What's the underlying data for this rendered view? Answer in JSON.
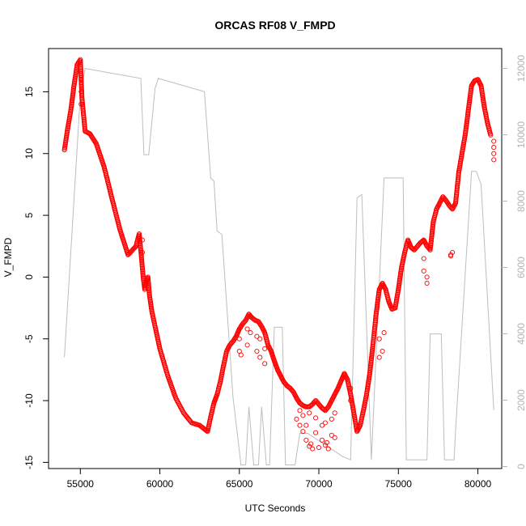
{
  "chart_data": {
    "type": "scatter",
    "title": "ORCAS RF08 V_FMPD",
    "xlabel": "UTC Seconds",
    "ylabel": "V_FMPD",
    "xlim": [
      53000,
      81500
    ],
    "ylim": [
      -15.5,
      18.5
    ],
    "y2lim": [
      -60,
      12600
    ],
    "xticks": [
      55000,
      60000,
      65000,
      70000,
      75000,
      80000
    ],
    "yticks": [
      -15,
      -10,
      -5,
      0,
      5,
      10,
      15
    ],
    "y2ticks": [
      0,
      2000,
      4000,
      6000,
      8000,
      10000,
      12000
    ],
    "series": [
      {
        "kind": "points",
        "color": "#ff0000",
        "x": [
          54000,
          54200,
          54400,
          54600,
          54800,
          55000,
          55100,
          55300,
          55600,
          56000,
          56500,
          57000,
          57500,
          58000,
          58500,
          58700,
          58850,
          58950,
          59050,
          59150,
          59250,
          59350,
          59500,
          59700,
          60000,
          60500,
          61000,
          61500,
          62000,
          62500,
          62800,
          63000,
          63200,
          63400,
          63600,
          63800,
          64000,
          64200,
          64400,
          64600,
          64800,
          65000,
          65200,
          65400,
          65600,
          65800,
          66000,
          66200,
          66400,
          66600,
          66800,
          67000,
          67200,
          67400,
          67600,
          67800,
          68000,
          68200,
          68400,
          68600,
          68800,
          69000,
          69200,
          69400,
          69600,
          69800,
          70000,
          70200,
          70400,
          70600,
          70800,
          71000,
          71200,
          71400,
          71600,
          71800,
          72000,
          72200,
          72400,
          72600,
          72800,
          73000,
          73200,
          73400,
          73600,
          73800,
          74000,
          74200,
          74400,
          74600,
          74800,
          75000,
          75200,
          75400,
          75600,
          75800,
          76000,
          76200,
          76400,
          76600,
          76800,
          77000,
          77200,
          77400,
          77600,
          77800,
          78000,
          78200,
          78400,
          78600,
          78800,
          79000,
          79200,
          79400,
          79600,
          79800,
          80000,
          80200,
          80400,
          80600,
          80800
        ],
        "y": [
          10.3,
          12.0,
          13.5,
          15.5,
          17.2,
          17.6,
          14.5,
          11.8,
          11.6,
          10.8,
          8.9,
          6.3,
          3.8,
          1.8,
          2.5,
          3.5,
          1.5,
          0.0,
          -1.0,
          -0.3,
          0.0,
          -1.5,
          -2.8,
          -4.0,
          -5.8,
          -8.0,
          -9.8,
          -11.0,
          -11.8,
          -12.0,
          -12.3,
          -12.5,
          -11.3,
          -10.2,
          -9.5,
          -8.5,
          -7.2,
          -6.0,
          -5.5,
          -5.2,
          -4.8,
          -4.2,
          -3.8,
          -3.5,
          -3.0,
          -3.3,
          -3.5,
          -3.6,
          -4.0,
          -4.5,
          -5.5,
          -6.0,
          -6.8,
          -7.5,
          -8.0,
          -8.5,
          -8.8,
          -9.0,
          -9.3,
          -9.8,
          -10.2,
          -10.4,
          -10.5,
          -10.5,
          -10.3,
          -10.0,
          -10.3,
          -10.6,
          -10.8,
          -10.5,
          -10.0,
          -9.5,
          -9.0,
          -8.4,
          -7.8,
          -8.3,
          -9.5,
          -11.0,
          -12.5,
          -12.0,
          -10.8,
          -9.5,
          -7.8,
          -5.5,
          -3.0,
          -1.0,
          -0.5,
          -1.0,
          -2.0,
          -2.6,
          -2.5,
          -1.0,
          0.8,
          2.0,
          3.0,
          2.4,
          2.2,
          2.5,
          2.8,
          3.0,
          2.5,
          2.2,
          4.5,
          5.5,
          6.0,
          6.5,
          6.2,
          5.8,
          5.5,
          6.0,
          8.5,
          10.0,
          11.5,
          13.5,
          15.5,
          15.9,
          16.0,
          15.5,
          13.8,
          12.5,
          11.5
        ]
      },
      {
        "kind": "points-scatter",
        "color": "#ff0000",
        "x": [
          55050,
          55050,
          55050,
          58900,
          58900,
          65000,
          65000,
          65100,
          65500,
          65500,
          65700,
          65700,
          66100,
          66100,
          66300,
          66300,
          66600,
          66600,
          68600,
          68800,
          68800,
          69000,
          69000,
          69200,
          69200,
          69400,
          69400,
          69500,
          69600,
          69800,
          69800,
          70000,
          70200,
          70200,
          70400,
          70400,
          70500,
          70600,
          70800,
          70800,
          71000,
          71000,
          72000,
          72000,
          73800,
          73800,
          74000,
          74100,
          76600,
          76600,
          76800,
          76800,
          78300,
          78300,
          78400,
          81000,
          81000,
          81000,
          81000
        ],
        "y": [
          16.0,
          15.0,
          14.0,
          3.0,
          2.0,
          -6.0,
          -5.0,
          -6.3,
          -5.5,
          -4.2,
          -4.5,
          -3.2,
          -6.0,
          -4.8,
          -6.5,
          -5.0,
          -7.0,
          -5.8,
          -11.5,
          -12.0,
          -10.8,
          -12.5,
          -11.2,
          -13.2,
          -12.0,
          -13.7,
          -11.0,
          -13.5,
          -13.9,
          -12.6,
          -11.4,
          -13.8,
          -13.2,
          -12.0,
          -13.6,
          -11.8,
          -13.4,
          -13.9,
          -12.8,
          -11.5,
          -13.0,
          -11.0,
          -10.0,
          -9.0,
          -6.5,
          -5.0,
          -6.0,
          -4.5,
          1.5,
          0.5,
          -0.5,
          0.0,
          1.8,
          1.7,
          2.0,
          10.5,
          9.5,
          10.0,
          11.0
        ]
      },
      {
        "kind": "line",
        "color": "#bebebe",
        "axis": "right",
        "x": [
          54000,
          55000,
          55300,
          58800,
          59000,
          59300,
          59700,
          59900,
          62800,
          63200,
          63400,
          63600,
          63900,
          64600,
          65100,
          65400,
          65600,
          65900,
          66200,
          66400,
          66700,
          66900,
          67200,
          67700,
          67900,
          68500,
          68800,
          69300,
          71500,
          72000,
          72400,
          72700,
          73300,
          74100,
          75300,
          75500,
          76800,
          77000,
          77700,
          77900,
          78500,
          78600,
          79600,
          79900,
          80200,
          81000
        ],
        "y": [
          3300,
          11200,
          12000,
          11700,
          9400,
          9400,
          11400,
          11700,
          11300,
          8700,
          8600,
          7100,
          7000,
          2100,
          50,
          50,
          1800,
          50,
          50,
          1800,
          50,
          50,
          4200,
          4200,
          50,
          50,
          1000,
          1000,
          300,
          200,
          8100,
          8200,
          200,
          8700,
          8700,
          200,
          200,
          4000,
          4000,
          200,
          200,
          1100,
          8900,
          8900,
          8500,
          1700
        ]
      }
    ]
  }
}
